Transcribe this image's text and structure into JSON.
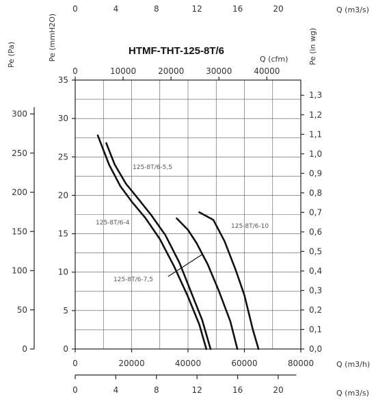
{
  "chart_data": {
    "type": "line",
    "title": "HTMF-THT-125-8T/6",
    "xlabel": "Q (m3/h)",
    "xlim": [
      0,
      80000
    ],
    "x_ticks": [
      0,
      20000,
      40000,
      60000,
      80000
    ],
    "ylabel_mmh2o": "Pe (mmH2O)",
    "ylim_mmh2o": [
      0,
      35
    ],
    "y_ticks_mmh2o": [
      0,
      5,
      10,
      15,
      20,
      25,
      30,
      35
    ],
    "ylabel_pa": "Pe (Pa)",
    "y_ticks_pa": [
      0,
      50,
      100,
      150,
      200,
      250,
      300
    ],
    "ylabel_inwg": "Pe (in wg)",
    "y_ticks_inwg": [
      "0,0",
      "0,1",
      "0,2",
      "0,3",
      "0,4",
      "0,5",
      "0,6",
      "0,7",
      "0,8",
      "0,9",
      "1,0",
      "1,1",
      "1,2",
      "1,3"
    ],
    "x_cfm_label": "Q (cfm)",
    "x_ticks_cfm": [
      0,
      10000,
      20000,
      30000,
      40000
    ],
    "x_m3s_label": "Q (m3/s)",
    "x_ticks_m3s": [
      0,
      4,
      8,
      12,
      16,
      20
    ],
    "series": [
      {
        "name": "125-8T/6-4",
        "points": [
          [
            8000,
            27.8
          ],
          [
            12000,
            24.0
          ],
          [
            16000,
            21.2
          ],
          [
            20000,
            19.2
          ],
          [
            25000,
            17.0
          ],
          [
            30000,
            14.3
          ],
          [
            35000,
            10.8
          ],
          [
            40000,
            6.8
          ],
          [
            44000,
            3.2
          ],
          [
            46500,
            0
          ]
        ]
      },
      {
        "name": "125-8T/6-5,5",
        "points": [
          [
            11000,
            26.8
          ],
          [
            14000,
            24.0
          ],
          [
            18000,
            21.5
          ],
          [
            22000,
            19.7
          ],
          [
            27000,
            17.4
          ],
          [
            32000,
            14.8
          ],
          [
            37000,
            11.2
          ],
          [
            41000,
            7.5
          ],
          [
            45000,
            3.8
          ],
          [
            48000,
            0
          ]
        ]
      },
      {
        "name": "125-8T/6-7,5",
        "points": [
          [
            36000,
            17.0
          ],
          [
            40000,
            15.5
          ],
          [
            43000,
            13.8
          ],
          [
            47000,
            11.0
          ],
          [
            51000,
            7.5
          ],
          [
            55000,
            3.6
          ],
          [
            57500,
            0
          ]
        ]
      },
      {
        "name": "125-8T/6-10",
        "points": [
          [
            44000,
            17.8
          ],
          [
            49000,
            16.8
          ],
          [
            53000,
            14.0
          ],
          [
            57000,
            10.2
          ],
          [
            60000,
            7.0
          ],
          [
            63000,
            2.5
          ],
          [
            65000,
            0
          ]
        ]
      }
    ]
  }
}
